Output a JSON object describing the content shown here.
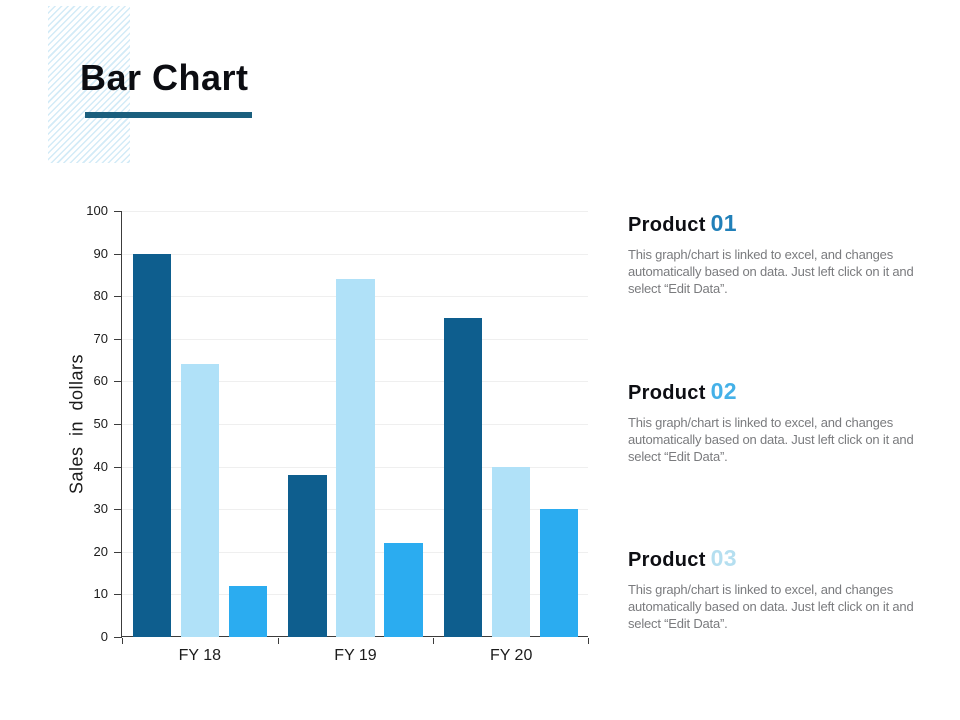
{
  "slide": {
    "title": "Bar Chart"
  },
  "chart_data": {
    "type": "bar",
    "categories": [
      "FY 18",
      "FY 19",
      "FY 20"
    ],
    "series": [
      {
        "color": "#0e5e8e",
        "values": [
          90,
          38,
          75
        ]
      },
      {
        "color": "#b0e1f8",
        "values": [
          64,
          84,
          40
        ]
      },
      {
        "color": "#2bacf0",
        "values": [
          12,
          22,
          30
        ]
      }
    ],
    "title": "",
    "xlabel": "",
    "ylabel": "Sales in dollars",
    "ylim": [
      0,
      100
    ],
    "ytick_step": 10,
    "grid": true,
    "legend": "none"
  },
  "products": [
    {
      "label": "Product",
      "number": "01",
      "number_color": "#2180b9",
      "description": "This graph/chart is linked to excel, and changes automatically based on data. Just left click on it and select “Edit Data”."
    },
    {
      "label": "Product",
      "number": "02",
      "number_color": "#45b1e8",
      "description": "This graph/chart is linked to excel, and changes automatically based on data. Just left click on it and select “Edit Data”."
    },
    {
      "label": "Product",
      "number": "03",
      "number_color": "#b5dff0",
      "description": "This graph/chart is linked to excel, and changes automatically based on data. Just left click on it and select “Edit Data”."
    }
  ],
  "accent": {
    "title_underline": "#1a5f7e",
    "stripe_fill": "#d3ebf7"
  }
}
